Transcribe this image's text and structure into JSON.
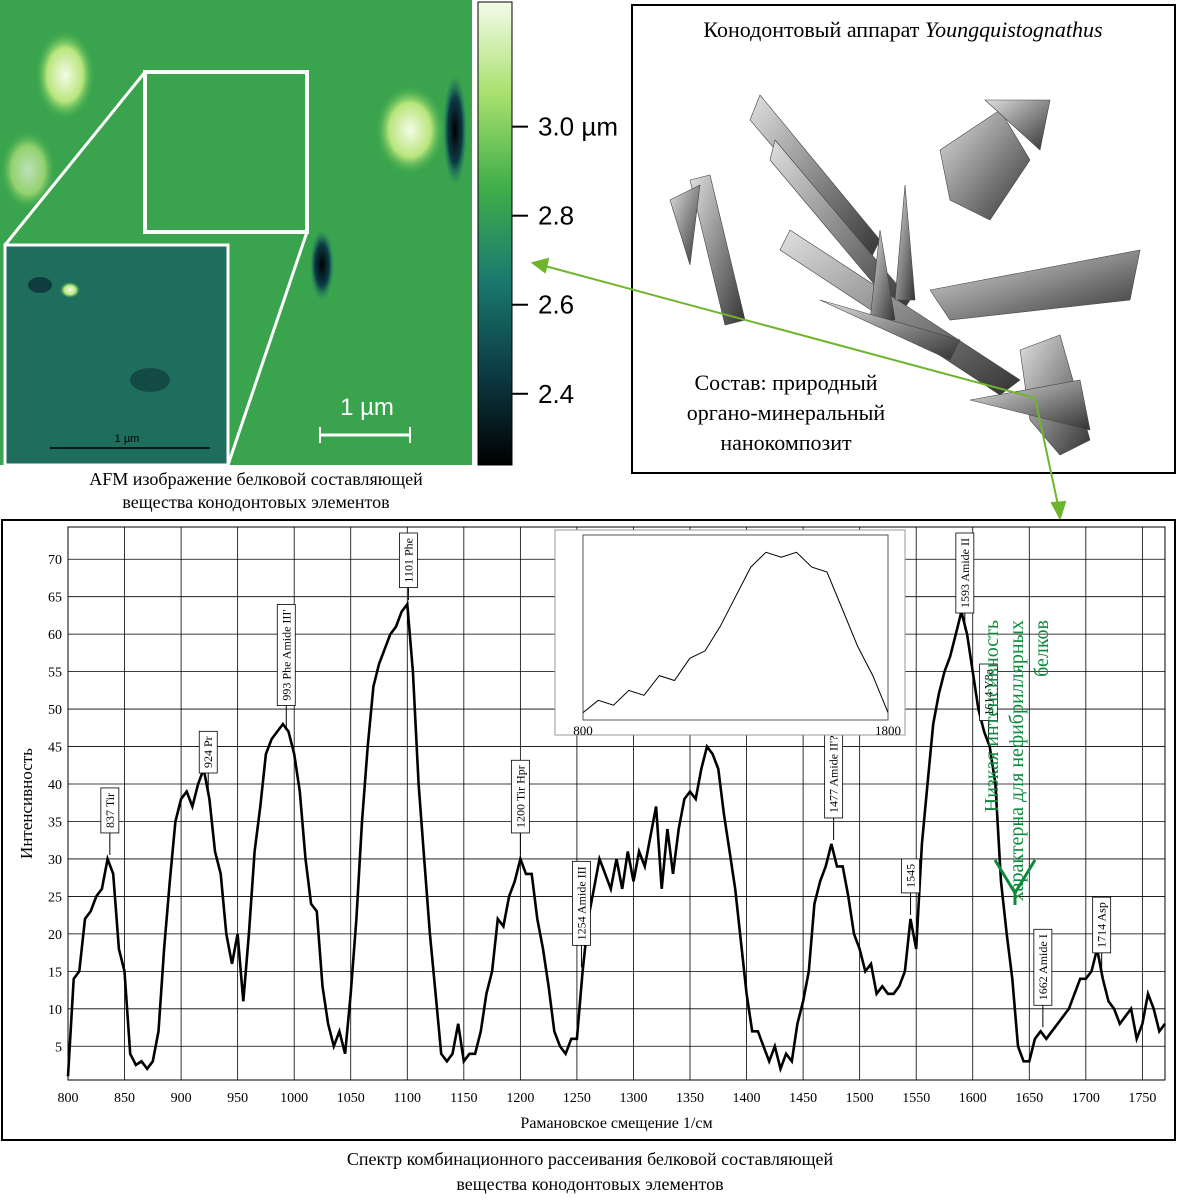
{
  "afm": {
    "scale_label": "1 µm",
    "inset_scale_label": "1 µm",
    "caption": [
      "AFM изображение белковой составляющей",
      "вещества конодонтовых элементов"
    ]
  },
  "apparatus": {
    "title": "Конодонтовый аппарат",
    "genus": "Youngquistognathus",
    "composition": [
      "Состав: природный",
      "органо-минеральный",
      "нанокомпозит"
    ]
  },
  "chart_data": [
    {
      "type": "colorbar",
      "ylim": [
        2.24,
        3.28
      ],
      "yticks": [
        {
          "value": 3.0,
          "label": "3.0 µm"
        },
        2.8,
        2.6,
        2.4
      ],
      "colors": [
        "#000000",
        "#0d3b45",
        "#1a7a6e",
        "#3fae49",
        "#a8e06e",
        "#f4fbe8"
      ]
    },
    {
      "type": "line",
      "color": "#000000",
      "xlabel": "Рамановское смещение 1/см",
      "ylabel": "Интенсивность",
      "grid": true,
      "xlim": [
        800,
        1770
      ],
      "ylim": [
        0.5,
        74.3
      ],
      "xticks": [
        800,
        850,
        900,
        950,
        1000,
        1050,
        1100,
        1150,
        1200,
        1250,
        1300,
        1350,
        1400,
        1450,
        1500,
        1550,
        1600,
        1650,
        1700,
        1750
      ],
      "yticks": [
        5,
        10,
        15,
        20,
        25,
        30,
        35,
        40,
        45,
        50,
        55,
        60,
        65,
        70
      ],
      "x": [
        800,
        805,
        810,
        815,
        820,
        825,
        830,
        835,
        840,
        845,
        850,
        855,
        860,
        865,
        870,
        875,
        880,
        885,
        890,
        895,
        900,
        905,
        910,
        915,
        920,
        925,
        930,
        935,
        940,
        945,
        950,
        955,
        960,
        965,
        970,
        975,
        980,
        985,
        990,
        995,
        1000,
        1005,
        1010,
        1015,
        1020,
        1025,
        1030,
        1035,
        1040,
        1045,
        1050,
        1055,
        1060,
        1065,
        1070,
        1075,
        1080,
        1085,
        1090,
        1095,
        1100,
        1105,
        1110,
        1115,
        1120,
        1125,
        1130,
        1135,
        1140,
        1145,
        1150,
        1155,
        1160,
        1165,
        1170,
        1175,
        1180,
        1185,
        1190,
        1195,
        1200,
        1205,
        1210,
        1215,
        1220,
        1225,
        1230,
        1235,
        1240,
        1245,
        1250,
        1255,
        1260,
        1265,
        1270,
        1275,
        1280,
        1285,
        1290,
        1295,
        1300,
        1305,
        1310,
        1315,
        1320,
        1325,
        1330,
        1335,
        1340,
        1345,
        1350,
        1355,
        1360,
        1365,
        1370,
        1375,
        1380,
        1385,
        1390,
        1395,
        1400,
        1405,
        1410,
        1415,
        1420,
        1425,
        1430,
        1435,
        1440,
        1445,
        1450,
        1455,
        1460,
        1465,
        1470,
        1475,
        1480,
        1485,
        1490,
        1495,
        1500,
        1505,
        1510,
        1515,
        1520,
        1525,
        1530,
        1535,
        1540,
        1545,
        1550,
        1555,
        1560,
        1565,
        1570,
        1575,
        1580,
        1585,
        1590,
        1595,
        1600,
        1605,
        1610,
        1615,
        1620,
        1625,
        1630,
        1635,
        1640,
        1645,
        1650,
        1655,
        1660,
        1665,
        1670,
        1675,
        1680,
        1685,
        1690,
        1695,
        1700,
        1705,
        1710,
        1715,
        1720,
        1725,
        1730,
        1735,
        1740,
        1745,
        1750,
        1755,
        1760,
        1765,
        1770
      ],
      "values": [
        1,
        14,
        15,
        22,
        23,
        25,
        26,
        30,
        28,
        18,
        15,
        4,
        2.5,
        3,
        2,
        3,
        7,
        18,
        27,
        35,
        38,
        39,
        37,
        40,
        42,
        38,
        31,
        28,
        20,
        16,
        20,
        11,
        20,
        31,
        37,
        44,
        46,
        47,
        48,
        47,
        44,
        39,
        30,
        24,
        23,
        13,
        8,
        5,
        7,
        4,
        12,
        22,
        35,
        45,
        53,
        56,
        58,
        60,
        61,
        63,
        64,
        55,
        40,
        30,
        20,
        12,
        4,
        3,
        4,
        8,
        3,
        4,
        4,
        7,
        12,
        15,
        22,
        21,
        25,
        27,
        30,
        28,
        28,
        22,
        18,
        13,
        7,
        5,
        4,
        6,
        6,
        15,
        22,
        26,
        30,
        28,
        26,
        30,
        26,
        31,
        27,
        31,
        29,
        33,
        37,
        26,
        34,
        28,
        34,
        38,
        39,
        38,
        42,
        45,
        44,
        42,
        36,
        31,
        26,
        19,
        12,
        7,
        7,
        5,
        3,
        5,
        2,
        4,
        3,
        8,
        11,
        15,
        24,
        27,
        29,
        32,
        29,
        29,
        25,
        20,
        18,
        15,
        16,
        12,
        13,
        12,
        12,
        13,
        15,
        22,
        18,
        32,
        40,
        48,
        52,
        55,
        57,
        60,
        63,
        60,
        55,
        50,
        47,
        45,
        40,
        27,
        20,
        14,
        5,
        3,
        3,
        6,
        7,
        6,
        7,
        8,
        9,
        10,
        12,
        14,
        14,
        15,
        18,
        14,
        11,
        10,
        8,
        9,
        10,
        6,
        8,
        12,
        10,
        7,
        8
      ],
      "annotations": [
        {
          "x": 837,
          "text": "837 Tir"
        },
        {
          "x": 924,
          "text": "924 Pr"
        },
        {
          "x": 993,
          "text": "993 Phe  Amide III'"
        },
        {
          "x": 1101,
          "text": "1101 Phe"
        },
        {
          "x": 1200,
          "text": "1200 Tir  Hpr"
        },
        {
          "x": 1254,
          "text": "1254 Amide III"
        },
        {
          "x": 1477,
          "text": "1477 Amide II'?"
        },
        {
          "x": 1545,
          "text": "1545"
        },
        {
          "x": 1593,
          "text": "1593 Amide II"
        },
        {
          "x": 1614,
          "text": "1614 Y8a"
        },
        {
          "x": 1662,
          "text": "1662 Amide I"
        },
        {
          "x": 1714,
          "text": "1714 Asp"
        }
      ],
      "note": {
        "lines": [
          "Низкая интенсивность",
          "характерна для нефибриллярных",
          "белков"
        ],
        "color": "#0b8a3c"
      }
    },
    {
      "type": "inset-line",
      "color": "#000000",
      "xlim": [
        800,
        1800
      ],
      "ylim": [
        0,
        75
      ],
      "xticks": [
        800,
        1800
      ],
      "x": [
        800,
        850,
        900,
        950,
        1000,
        1050,
        1100,
        1150,
        1200,
        1250,
        1300,
        1350,
        1400,
        1450,
        1500,
        1550,
        1600,
        1650,
        1700,
        1750,
        1800
      ],
      "values": [
        3,
        8,
        6,
        12,
        10,
        18,
        16,
        25,
        28,
        38,
        50,
        62,
        68,
        66,
        68,
        62,
        60,
        45,
        30,
        18,
        3
      ]
    }
  ],
  "caption": [
    "Спектр комбинационного рассеивания белковой составляющей",
    "вещества конодонтовых элементов"
  ]
}
